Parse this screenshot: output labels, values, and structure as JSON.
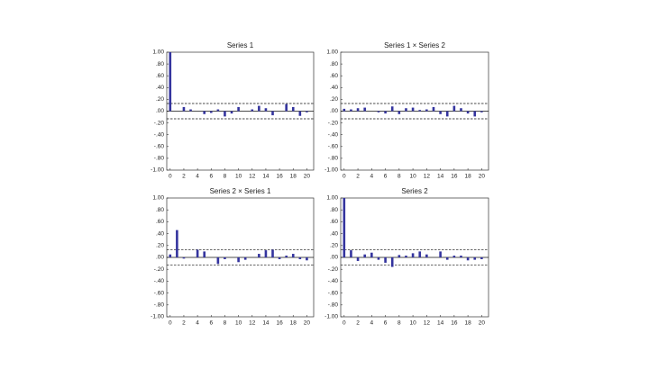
{
  "chart_data": [
    {
      "type": "bar",
      "title": "Series 1",
      "x": [
        0,
        1,
        2,
        3,
        4,
        5,
        6,
        7,
        8,
        9,
        10,
        11,
        12,
        13,
        14,
        15,
        16,
        17,
        18,
        19,
        20
      ],
      "values": [
        1.0,
        0.0,
        0.07,
        0.03,
        0.0,
        -0.05,
        -0.03,
        0.03,
        -0.09,
        -0.04,
        0.07,
        0.0,
        0.03,
        0.09,
        0.05,
        -0.07,
        0.0,
        0.12,
        0.07,
        -0.08,
        -0.02
      ],
      "color": "#34349e",
      "conf_bands": [
        0.13,
        -0.13
      ],
      "xlim": [
        -0.5,
        21
      ],
      "ylim": [
        -1,
        1
      ],
      "xticks": [
        0,
        2,
        4,
        6,
        8,
        10,
        12,
        14,
        16,
        18,
        20
      ],
      "yticks": [
        {
          "value": 1,
          "label": "1.00"
        },
        {
          "value": 0.8,
          "label": ".80"
        },
        {
          "value": 0.6,
          "label": ".60"
        },
        {
          "value": 0.4,
          "label": ".40"
        },
        {
          "value": 0.2,
          "label": ".20"
        },
        {
          "value": 0,
          "label": ".00"
        },
        {
          "value": -0.2,
          "label": "-.20"
        },
        {
          "value": -0.4,
          "label": "-.40"
        },
        {
          "value": -0.6,
          "label": "-.60"
        },
        {
          "value": -0.8,
          "label": "-.80"
        },
        {
          "value": -1,
          "label": "-1.00"
        }
      ]
    },
    {
      "type": "bar",
      "title": "Series 1 × Series 2",
      "x": [
        0,
        1,
        2,
        3,
        4,
        5,
        6,
        7,
        8,
        9,
        10,
        11,
        12,
        13,
        14,
        15,
        16,
        17,
        18,
        19,
        20
      ],
      "values": [
        0.04,
        0.03,
        0.05,
        0.06,
        0.0,
        -0.02,
        -0.04,
        0.08,
        -0.05,
        0.05,
        0.06,
        0.02,
        0.03,
        0.07,
        -0.05,
        -0.09,
        0.09,
        0.05,
        -0.04,
        -0.09,
        -0.02
      ],
      "color": "#34349e",
      "conf_bands": [
        0.13,
        -0.13
      ],
      "xlim": [
        -0.5,
        21
      ],
      "ylim": [
        -1,
        1
      ],
      "xticks": [
        0,
        2,
        4,
        6,
        8,
        10,
        12,
        14,
        16,
        18,
        20
      ],
      "yticks": [
        {
          "value": 1,
          "label": "1.00"
        },
        {
          "value": 0.8,
          "label": ".80"
        },
        {
          "value": 0.6,
          "label": ".60"
        },
        {
          "value": 0.4,
          "label": ".40"
        },
        {
          "value": 0.2,
          "label": ".20"
        },
        {
          "value": 0,
          "label": ".00"
        },
        {
          "value": -0.2,
          "label": "-.20"
        },
        {
          "value": -0.4,
          "label": "-.40"
        },
        {
          "value": -0.6,
          "label": "-.60"
        },
        {
          "value": -0.8,
          "label": "-.80"
        },
        {
          "value": -1,
          "label": "-1.00"
        }
      ]
    },
    {
      "type": "bar",
      "title": "Series 2 × Series 1",
      "x": [
        0,
        1,
        2,
        3,
        4,
        5,
        6,
        7,
        8,
        9,
        10,
        11,
        12,
        13,
        14,
        15,
        16,
        17,
        18,
        19,
        20
      ],
      "values": [
        0.05,
        0.46,
        -0.02,
        0.0,
        0.13,
        0.1,
        0.0,
        -0.11,
        -0.03,
        0.0,
        -0.08,
        -0.04,
        0.0,
        0.06,
        0.12,
        0.13,
        -0.03,
        0.03,
        0.06,
        -0.03,
        -0.05
      ],
      "color": "#34349e",
      "conf_bands": [
        0.13,
        -0.13
      ],
      "xlim": [
        -0.5,
        21
      ],
      "ylim": [
        -1,
        1
      ],
      "xticks": [
        0,
        2,
        4,
        6,
        8,
        10,
        12,
        14,
        16,
        18,
        20
      ],
      "yticks": [
        {
          "value": 1,
          "label": "1.00"
        },
        {
          "value": 0.8,
          "label": ".80"
        },
        {
          "value": 0.6,
          "label": ".60"
        },
        {
          "value": 0.4,
          "label": ".40"
        },
        {
          "value": 0.2,
          "label": ".20"
        },
        {
          "value": 0,
          "label": ".00"
        },
        {
          "value": -0.2,
          "label": "-.20"
        },
        {
          "value": -0.4,
          "label": "-.40"
        },
        {
          "value": -0.6,
          "label": "-.60"
        },
        {
          "value": -0.8,
          "label": "-.80"
        },
        {
          "value": -1,
          "label": "-1.00"
        }
      ]
    },
    {
      "type": "bar",
      "title": "Series 2",
      "x": [
        0,
        1,
        2,
        3,
        4,
        5,
        6,
        7,
        8,
        9,
        10,
        11,
        12,
        13,
        14,
        15,
        16,
        17,
        18,
        19,
        20
      ],
      "values": [
        1.0,
        0.12,
        -0.06,
        0.05,
        0.08,
        -0.04,
        -0.09,
        -0.16,
        0.04,
        0.03,
        0.07,
        0.1,
        0.05,
        0.0,
        0.1,
        -0.04,
        0.03,
        0.03,
        -0.05,
        -0.04,
        -0.03
      ],
      "color": "#34349e",
      "conf_bands": [
        0.13,
        -0.13
      ],
      "xlim": [
        -0.5,
        21
      ],
      "ylim": [
        -1,
        1
      ],
      "xticks": [
        0,
        2,
        4,
        6,
        8,
        10,
        12,
        14,
        16,
        18,
        20
      ],
      "yticks": [
        {
          "value": 1,
          "label": "1.00"
        },
        {
          "value": 0.8,
          "label": ".80"
        },
        {
          "value": 0.6,
          "label": ".60"
        },
        {
          "value": 0.4,
          "label": ".40"
        },
        {
          "value": 0.2,
          "label": ".20"
        },
        {
          "value": 0,
          "label": ".00"
        },
        {
          "value": -0.2,
          "label": "-.20"
        },
        {
          "value": -0.4,
          "label": "-.40"
        },
        {
          "value": -0.6,
          "label": "-.60"
        },
        {
          "value": -0.8,
          "label": "-.80"
        },
        {
          "value": -1,
          "label": "-1.00"
        }
      ]
    }
  ]
}
